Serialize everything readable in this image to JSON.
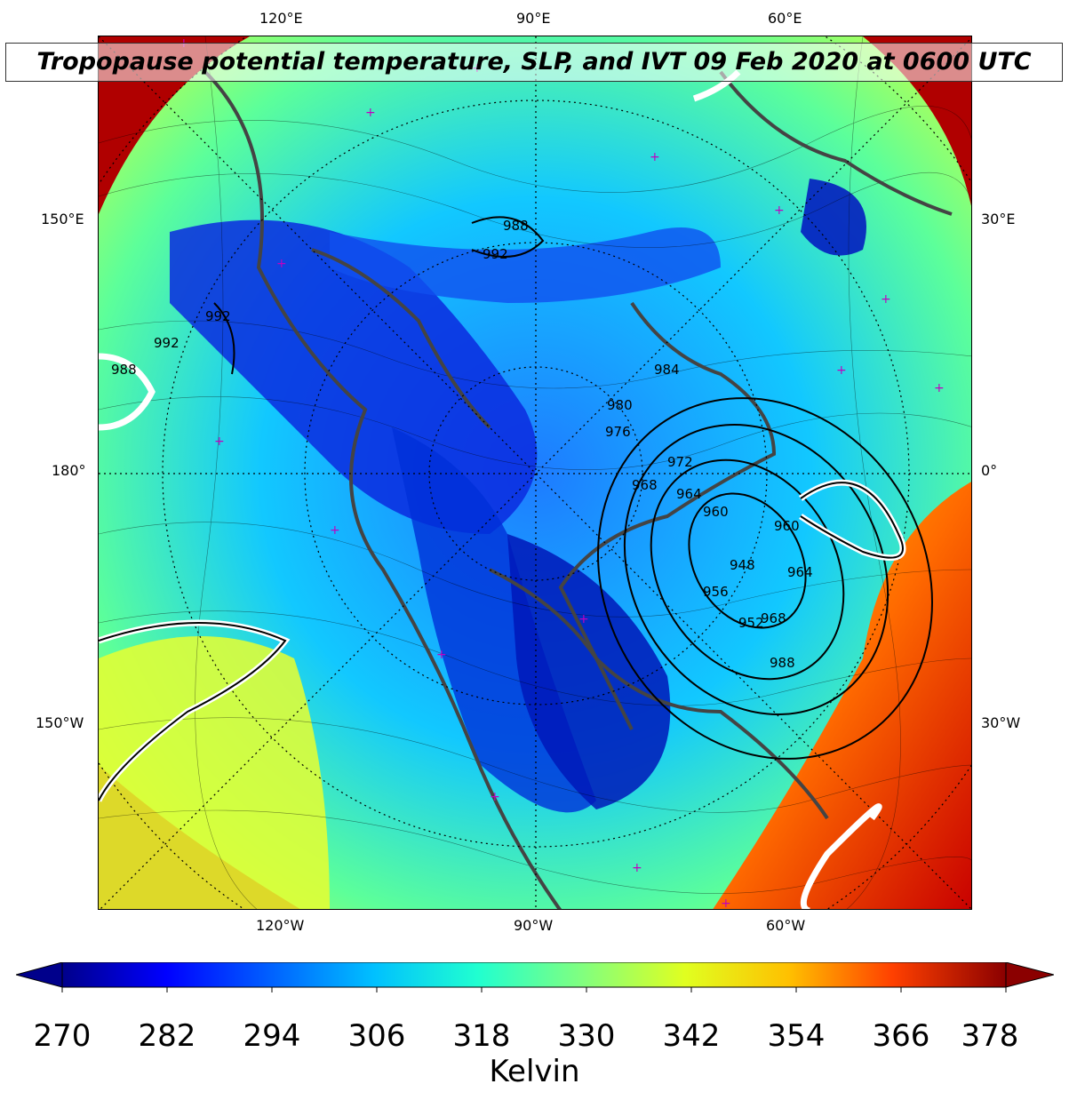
{
  "title": "Tropopause potential temperature, SLP, and IVT 09 Feb 2020 at 0600 UTC",
  "top_labels": [
    "120°E",
    "90°E",
    "60°E"
  ],
  "bottom_labels": [
    "120°W",
    "90°W",
    "60°W"
  ],
  "left_labels": [
    "150°E",
    "180°",
    "150°W"
  ],
  "right_labels": [
    "30°E",
    "0°",
    "30°W"
  ],
  "slp_labels": [
    "988",
    "992",
    "992",
    "992",
    "988",
    "984",
    "980",
    "976",
    "972",
    "968",
    "964",
    "960",
    "956",
    "952",
    "948",
    "968",
    "988",
    "964",
    "960"
  ],
  "colorbar": {
    "ticks": [
      "270",
      "282",
      "294",
      "306",
      "318",
      "330",
      "342",
      "354",
      "366",
      "378"
    ],
    "label": "Kelvin",
    "colors": [
      "#00008b",
      "#0000ff",
      "#0060ff",
      "#00c0ff",
      "#20ffd0",
      "#80ff80",
      "#e0ff20",
      "#ffc000",
      "#ff4000",
      "#8b0000"
    ]
  }
}
